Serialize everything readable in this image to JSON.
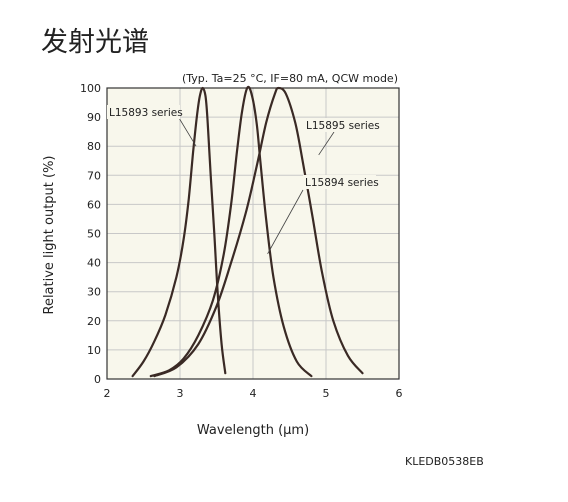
{
  "page": {
    "title": "发射光谱",
    "figure_code": "KLEDB0538EB"
  },
  "chart_data": {
    "type": "line",
    "title": "",
    "conditions_note": "(Typ. Ta=25 °C, IF=80 mA, QCW mode)",
    "xlabel": "Wavelength (µm)",
    "ylabel": "Relative light output (%)",
    "xlim": [
      2,
      6
    ],
    "ylim": [
      0,
      100
    ],
    "x_ticks": [
      2,
      3,
      4,
      5,
      6
    ],
    "y_ticks": [
      0,
      10,
      20,
      30,
      40,
      50,
      60,
      70,
      80,
      90,
      100
    ],
    "grid": true,
    "colors": {
      "curve": "#3a2a25",
      "grid": "#c8c8c8",
      "frame": "#333333",
      "background": "#f8f7ec"
    },
    "series": [
      {
        "name": "L15893 series",
        "points": [
          [
            2.35,
            1
          ],
          [
            2.5,
            6
          ],
          [
            2.65,
            13
          ],
          [
            2.8,
            22
          ],
          [
            2.95,
            35
          ],
          [
            3.05,
            48
          ],
          [
            3.12,
            62
          ],
          [
            3.18,
            78
          ],
          [
            3.23,
            90
          ],
          [
            3.27,
            97
          ],
          [
            3.31,
            100
          ],
          [
            3.35,
            97
          ],
          [
            3.38,
            88
          ],
          [
            3.42,
            70
          ],
          [
            3.47,
            50
          ],
          [
            3.52,
            28
          ],
          [
            3.57,
            12
          ],
          [
            3.62,
            2
          ]
        ]
      },
      {
        "name": "L15894 series",
        "points": [
          [
            2.6,
            1
          ],
          [
            2.85,
            3
          ],
          [
            3.05,
            7
          ],
          [
            3.25,
            15
          ],
          [
            3.45,
            27
          ],
          [
            3.6,
            43
          ],
          [
            3.7,
            60
          ],
          [
            3.78,
            78
          ],
          [
            3.85,
            92
          ],
          [
            3.92,
            100
          ],
          [
            3.98,
            98
          ],
          [
            4.05,
            88
          ],
          [
            4.1,
            75
          ],
          [
            4.18,
            55
          ],
          [
            4.28,
            35
          ],
          [
            4.42,
            18
          ],
          [
            4.6,
            6
          ],
          [
            4.8,
            1
          ]
        ]
      },
      {
        "name": "L15895 series",
        "points": [
          [
            2.65,
            1
          ],
          [
            2.95,
            4
          ],
          [
            3.25,
            12
          ],
          [
            3.5,
            25
          ],
          [
            3.7,
            40
          ],
          [
            3.9,
            57
          ],
          [
            4.05,
            73
          ],
          [
            4.18,
            88
          ],
          [
            4.3,
            98
          ],
          [
            4.35,
            100
          ],
          [
            4.45,
            98
          ],
          [
            4.58,
            88
          ],
          [
            4.68,
            75
          ],
          [
            4.82,
            55
          ],
          [
            4.95,
            36
          ],
          [
            5.1,
            20
          ],
          [
            5.3,
            8
          ],
          [
            5.5,
            2
          ]
        ]
      }
    ],
    "annotations": [
      {
        "text": "L15893 series",
        "target": [
          3.22,
          80
        ]
      },
      {
        "text": "L15895 series",
        "target": [
          4.9,
          77
        ]
      },
      {
        "text": "L15894 series",
        "target": [
          4.2,
          43
        ]
      }
    ]
  }
}
